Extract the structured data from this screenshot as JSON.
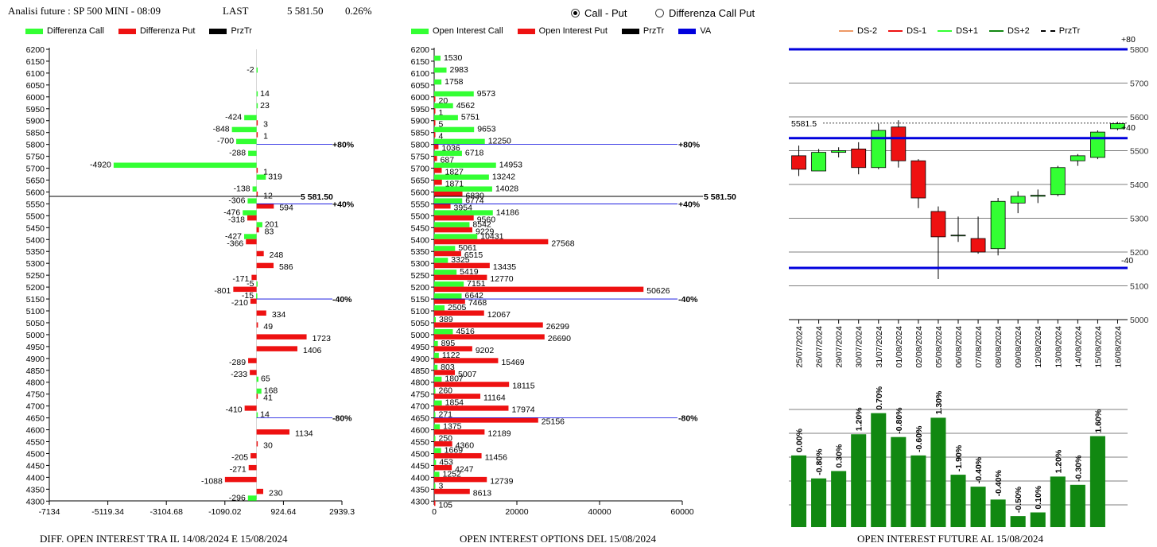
{
  "header": {
    "title": "Analisi future : SP 500 MINI - 08:09",
    "last_label": "LAST",
    "last_value": "5 581.50",
    "change": "0.26%"
  },
  "mode": {
    "option1": "Call - Put",
    "option2": "Differenza Call Put",
    "selected": "Call - Put"
  },
  "colors": {
    "call": "#33ff33",
    "put": "#ee1111",
    "prztr": "#000000",
    "va": "#0000dd",
    "future_bar": "#118811"
  },
  "legend_left": [
    {
      "label": "Differenza Call",
      "color": "#33ff33"
    },
    {
      "label": "Differenza Put",
      "color": "#ee1111"
    },
    {
      "label": "PrzTr",
      "color": "#000000"
    }
  ],
  "legend_mid": [
    {
      "label": "Open Interest Call",
      "color": "#33ff33"
    },
    {
      "label": "Open Interest Put",
      "color": "#ee1111"
    },
    {
      "label": "PrzTr",
      "color": "#000000"
    },
    {
      "label": "VA",
      "color": "#0000dd"
    }
  ],
  "legend_right": [
    {
      "label": "DS-2",
      "color": "#ee9966",
      "style": "solid"
    },
    {
      "label": "DS-1",
      "color": "#ee1111",
      "style": "solid"
    },
    {
      "label": "DS+1",
      "color": "#33ff33",
      "style": "solid"
    },
    {
      "label": "DS+2",
      "color": "#118811",
      "style": "solid"
    },
    {
      "label": "PrzTr",
      "color": "#000000",
      "style": "dashed"
    }
  ],
  "captions": {
    "left": "DIFF. OPEN INTEREST TRA IL 14/08/2024 E 15/08/2024",
    "mid": "OPEN INTEREST OPTIONS DEL 15/08/2024",
    "right": "OPEN INTEREST FUTURE AL 15/08/2024"
  },
  "chart_data": [
    {
      "type": "bar",
      "orientation": "horizontal",
      "strikes": [
        6200,
        6150,
        6100,
        6050,
        6000,
        5950,
        5900,
        5850,
        5800,
        5750,
        5700,
        5650,
        5600,
        5550,
        5500,
        5450,
        5400,
        5350,
        5300,
        5250,
        5200,
        5150,
        5100,
        5050,
        5000,
        4950,
        4900,
        4850,
        4800,
        4750,
        4700,
        4650,
        4600,
        4550,
        4500,
        4450,
        4400,
        4350,
        4300
      ],
      "series": [
        {
          "name": "Differenza Call",
          "values": [
            null,
            null,
            -2,
            null,
            14,
            23,
            -424,
            -848,
            -700,
            -288,
            -4920,
            319,
            -138,
            -306,
            -476,
            201,
            -427,
            null,
            null,
            null,
            -5,
            -15,
            null,
            null,
            null,
            null,
            null,
            null,
            65,
            168,
            null,
            14,
            null,
            null,
            null,
            null,
            null,
            null,
            -296
          ]
        },
        {
          "name": "Differenza Put",
          "values": [
            null,
            null,
            null,
            null,
            null,
            null,
            3,
            1,
            null,
            null,
            1,
            null,
            12,
            594,
            -318,
            83,
            -366,
            248,
            586,
            -171,
            -801,
            -210,
            334,
            49,
            1723,
            1406,
            -289,
            -233,
            null,
            41,
            -410,
            null,
            1134,
            30,
            -205,
            -271,
            -1088,
            230,
            null
          ]
        }
      ],
      "xlim": [
        -7134,
        2939.3
      ],
      "xticks": [
        "-7134",
        "-5119.34",
        "-3104.68",
        "-1090.02",
        "924.64",
        "2939.3"
      ],
      "annotations": [
        {
          "strike": 5800,
          "text": "+80%"
        },
        {
          "strike": 5550,
          "text": "+40%"
        },
        {
          "strike": 5150,
          "text": "-40%"
        },
        {
          "strike": 4650,
          "text": "-80%"
        }
      ],
      "przTr": {
        "value": 5581.5,
        "text": "5 581.50"
      }
    },
    {
      "type": "bar",
      "orientation": "horizontal",
      "strikes": [
        6200,
        6150,
        6100,
        6050,
        6000,
        5950,
        5900,
        5850,
        5800,
        5750,
        5700,
        5650,
        5600,
        5550,
        5500,
        5450,
        5400,
        5350,
        5300,
        5250,
        5200,
        5150,
        5100,
        5050,
        5000,
        4950,
        4900,
        4850,
        4800,
        4750,
        4700,
        4650,
        4600,
        4550,
        4500,
        4450,
        4400,
        4350,
        4300
      ],
      "series": [
        {
          "name": "Open Interest Call",
          "values": [
            null,
            1530,
            2983,
            1758,
            9573,
            4562,
            5751,
            9653,
            12250,
            6718,
            14953,
            13242,
            14028,
            6774,
            14186,
            8542,
            10431,
            5061,
            3325,
            5419,
            7151,
            6642,
            2505,
            389,
            4516,
            895,
            1122,
            803,
            1807,
            260,
            1854,
            271,
            1375,
            250,
            1669,
            453,
            1252,
            3,
            null
          ]
        },
        {
          "name": "Open Interest Put",
          "values": [
            null,
            null,
            null,
            null,
            20,
            1,
            5,
            4,
            1036,
            687,
            1827,
            1871,
            6830,
            3954,
            9560,
            9229,
            27568,
            6515,
            13435,
            12770,
            50626,
            7468,
            12067,
            26299,
            26690,
            9202,
            15469,
            5007,
            18115,
            11164,
            17974,
            25156,
            12189,
            4360,
            11456,
            4247,
            12739,
            8613,
            105
          ]
        }
      ],
      "xlim": [
        0,
        60000
      ],
      "xticks": [
        "0",
        "20000",
        "40000",
        "60000"
      ],
      "annotations": [
        {
          "strike": 5800,
          "text": "+80%"
        },
        {
          "strike": 5550,
          "text": "+40%"
        },
        {
          "strike": 5150,
          "text": "-40%"
        },
        {
          "strike": 4650,
          "text": "-80%"
        }
      ],
      "przTr": {
        "value": 5581.5,
        "text": "5 581.50"
      }
    },
    {
      "type": "candlestick",
      "dates": [
        "25/07/2024",
        "26/07/2024",
        "29/07/2024",
        "30/07/2024",
        "31/07/2024",
        "01/08/2024",
        "02/08/2024",
        "05/08/2024",
        "06/08/2024",
        "07/08/2024",
        "08/08/2024",
        "09/08/2024",
        "12/08/2024",
        "13/08/2024",
        "14/08/2024",
        "15/08/2024",
        "16/08/2024"
      ],
      "candles": [
        {
          "o": 5485,
          "h": 5515,
          "l": 5425,
          "c": 5445
        },
        {
          "o": 5440,
          "h": 5505,
          "l": 5440,
          "c": 5495
        },
        {
          "o": 5495,
          "h": 5510,
          "l": 5480,
          "c": 5500
        },
        {
          "o": 5505,
          "h": 5525,
          "l": 5430,
          "c": 5450
        },
        {
          "o": 5450,
          "h": 5580,
          "l": 5445,
          "c": 5560
        },
        {
          "o": 5570,
          "h": 5590,
          "l": 5450,
          "c": 5470
        },
        {
          "o": 5470,
          "h": 5475,
          "l": 5330,
          "c": 5360
        },
        {
          "o": 5320,
          "h": 5335,
          "l": 5120,
          "c": 5245
        },
        {
          "o": 5250,
          "h": 5305,
          "l": 5230,
          "c": 5250
        },
        {
          "o": 5240,
          "h": 5305,
          "l": 5195,
          "c": 5200
        },
        {
          "o": 5210,
          "h": 5360,
          "l": 5190,
          "c": 5350
        },
        {
          "o": 5345,
          "h": 5380,
          "l": 5315,
          "c": 5365
        },
        {
          "o": 5365,
          "h": 5385,
          "l": 5345,
          "c": 5368
        },
        {
          "o": 5370,
          "h": 5455,
          "l": 5365,
          "c": 5450
        },
        {
          "o": 5470,
          "h": 5490,
          "l": 5455,
          "c": 5485
        },
        {
          "o": 5480,
          "h": 5560,
          "l": 5475,
          "c": 5555
        },
        {
          "o": 5565,
          "h": 5585,
          "l": 5560,
          "c": 5580
        }
      ],
      "ylim": [
        5000,
        5800
      ],
      "yticks": [
        "5000",
        "5100",
        "5200",
        "5300",
        "5400",
        "5500",
        "5600",
        "5700",
        "5800"
      ],
      "levels": [
        {
          "value": 5800,
          "label": "+80"
        },
        {
          "value": 5537,
          "label": "+40"
        },
        {
          "value": 5153,
          "label": "-40"
        }
      ],
      "przTr": {
        "value": 5581.5,
        "text": "5581.5"
      }
    },
    {
      "type": "bar",
      "categories": [
        "25/07/2024",
        "26/07/2024",
        "29/07/2024",
        "30/07/2024",
        "31/07/2024",
        "01/08/2024",
        "02/08/2024",
        "05/08/2024",
        "06/08/2024",
        "07/08/2024",
        "08/08/2024",
        "09/08/2024",
        "12/08/2024",
        "13/08/2024",
        "14/08/2024",
        "15/08/2024",
        "16/08/2024"
      ],
      "labels": [
        "0.00%",
        "-0.80%",
        "0.30%",
        "1.20%",
        "0.70%",
        "-0.80%",
        "-0.60%",
        "1.30%",
        "-1.90%",
        "-0.40%",
        "-0.40%",
        "-0.50%",
        "0.10%",
        "1.20%",
        "-0.30%",
        "1.60%",
        ""
      ],
      "values": [
        78,
        53,
        61,
        101,
        124,
        98,
        78,
        119,
        57,
        44,
        30,
        12,
        16,
        55,
        46,
        99,
        null
      ],
      "ylim": [
        0,
        128
      ]
    }
  ]
}
